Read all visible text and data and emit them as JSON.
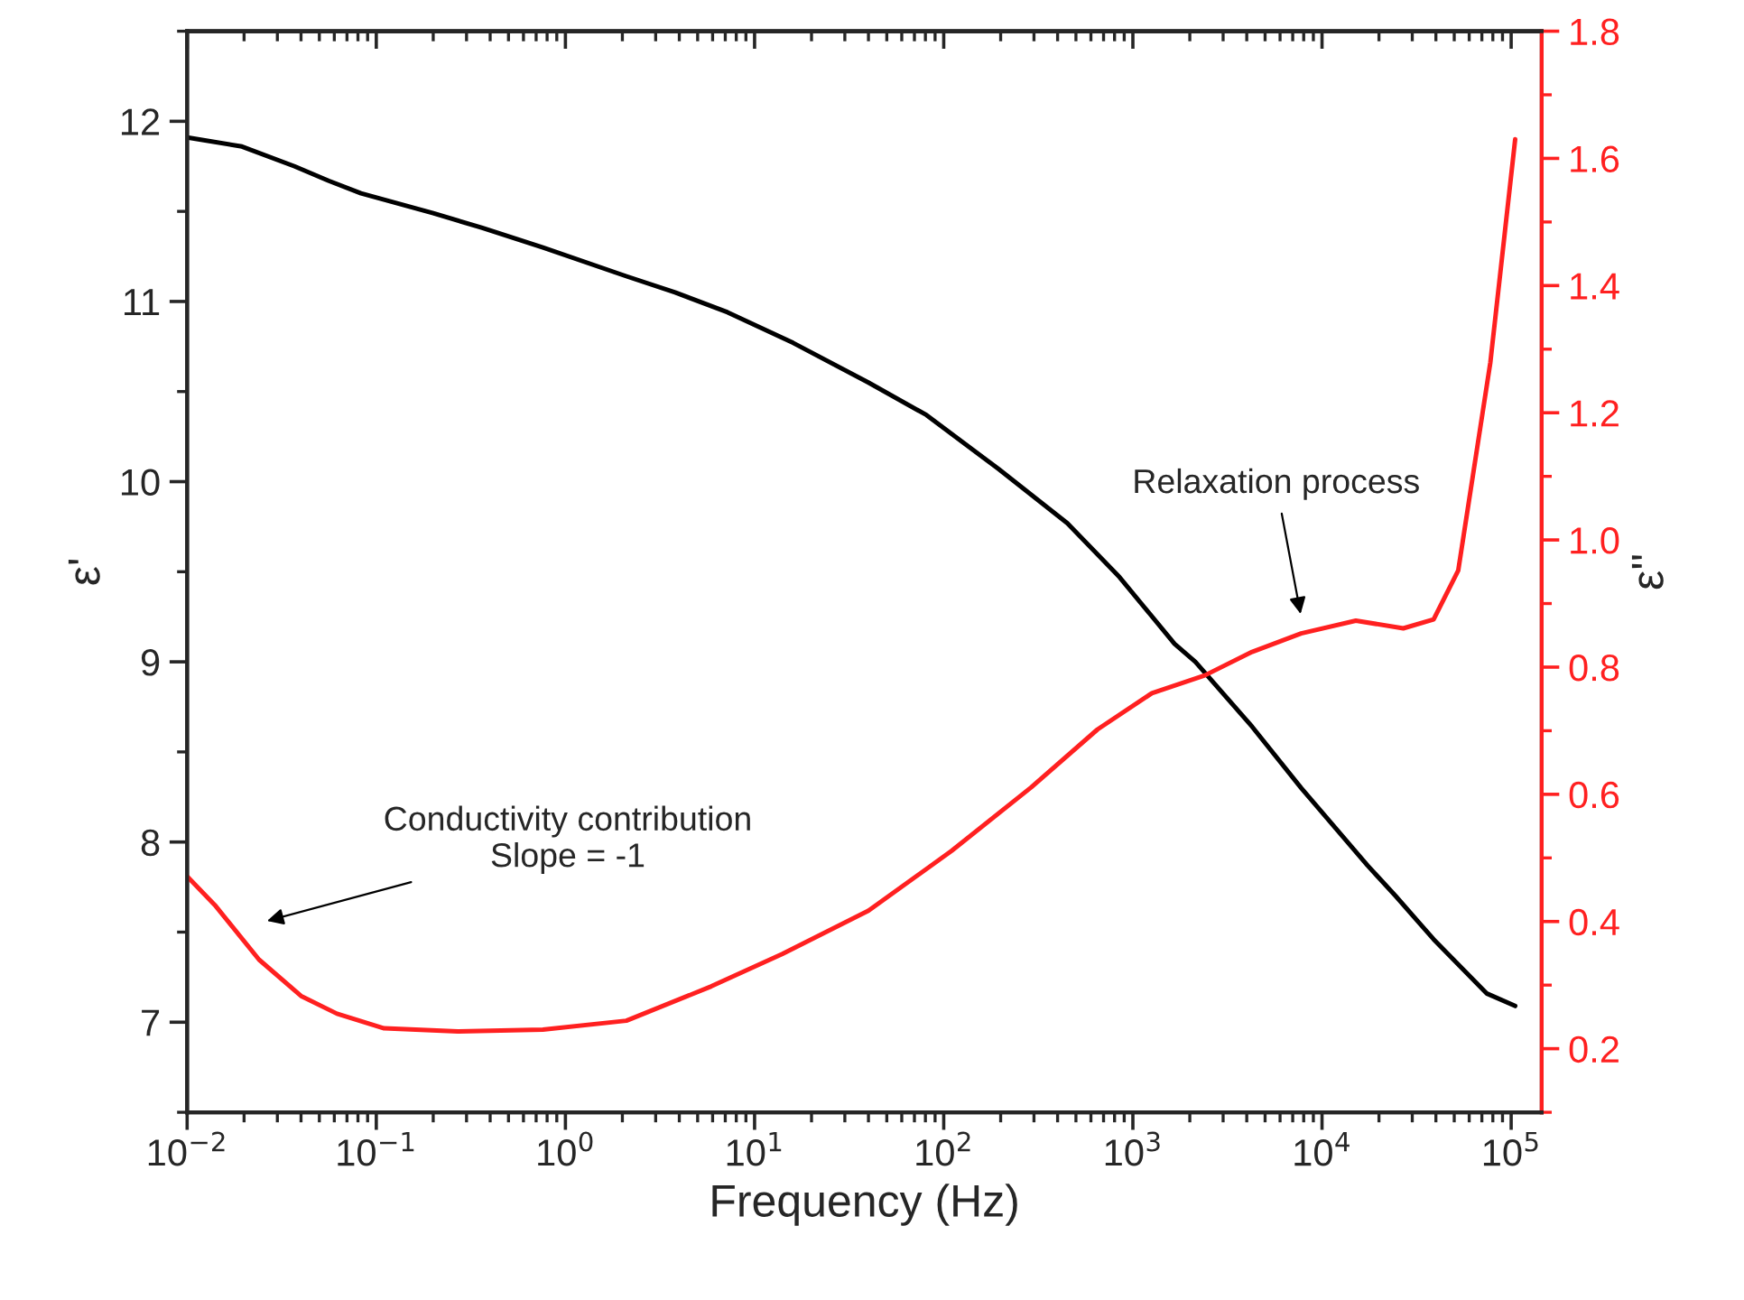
{
  "chart_data": {
    "type": "line",
    "xlabel": "Frequency (Hz)",
    "ylabel": "ε'",
    "y2label": "ε''",
    "log": "x",
    "xlim": [
      0.01,
      145000
    ],
    "xticks": [
      {
        "value": 0.01,
        "label": "10$^{−2}$"
      },
      {
        "value": 0.1,
        "label": "10$^{−1}$"
      },
      {
        "value": 1,
        "label": "10$^{0}$"
      },
      {
        "value": 10,
        "label": "10$^{1}$"
      },
      {
        "value": 100,
        "label": "10$^{2}$"
      },
      {
        "value": 1000,
        "label": "10$^{3}$"
      },
      {
        "value": 10000,
        "label": "10$^{4}$"
      },
      {
        "value": 100000,
        "label": "10$^{5}$"
      }
    ],
    "ylim": [
      6.5,
      12.5
    ],
    "yticks": [
      7,
      8,
      9,
      10,
      11,
      12
    ],
    "y2lim": [
      0.1,
      1.8
    ],
    "y2ticks": [
      {
        "value": 0.2,
        "label": "0.2"
      },
      {
        "value": 0.4,
        "label": "0.4"
      },
      {
        "value": 0.6,
        "label": "0.6"
      },
      {
        "value": 0.8,
        "label": "0.8"
      },
      {
        "value": 1.0,
        "label": "1.0"
      },
      {
        "value": 1.2,
        "label": "1.2"
      },
      {
        "value": 1.4,
        "label": "1.4"
      },
      {
        "value": 1.6,
        "label": "1.6"
      },
      {
        "value": 1.8,
        "label": "1.8"
      }
    ],
    "series": [
      {
        "color": "#000000",
        "x": [
          0.01,
          0.0195,
          0.037,
          0.056,
          0.083,
          0.2,
          0.36,
          0.76,
          2.1,
          3.8,
          7.2,
          16,
          40,
          81,
          195,
          450,
          850,
          1660,
          2140,
          4270,
          7760,
          17400,
          24500,
          38900,
          74100,
          105000
        ],
        "values": [
          11.91,
          11.86,
          11.75,
          11.67,
          11.6,
          11.49,
          11.41,
          11.3,
          11.14,
          11.05,
          10.94,
          10.77,
          10.55,
          10.37,
          10.07,
          9.77,
          9.47,
          9.1,
          9.0,
          8.64,
          8.3,
          7.87,
          7.7,
          7.46,
          7.16,
          7.09
        ]
      },
      {
        "color": "#ff2020",
        "axis": "y2",
        "x": [
          0.01,
          0.014,
          0.024,
          0.04,
          0.062,
          0.11,
          0.27,
          0.76,
          2.1,
          5.9,
          14,
          40,
          110,
          290,
          650,
          1260,
          2400,
          4270,
          7760,
          15100,
          26900,
          38900,
          52500,
          77600,
          105000
        ],
        "values": [
          0.471,
          0.426,
          0.34,
          0.283,
          0.255,
          0.232,
          0.227,
          0.23,
          0.244,
          0.298,
          0.349,
          0.417,
          0.511,
          0.611,
          0.702,
          0.759,
          0.787,
          0.824,
          0.853,
          0.873,
          0.861,
          0.875,
          0.952,
          1.279,
          1.63
        ]
      }
    ],
    "annotations": [
      "Conductivity contribution\nSlope = -1",
      "Relaxation process"
    ]
  }
}
